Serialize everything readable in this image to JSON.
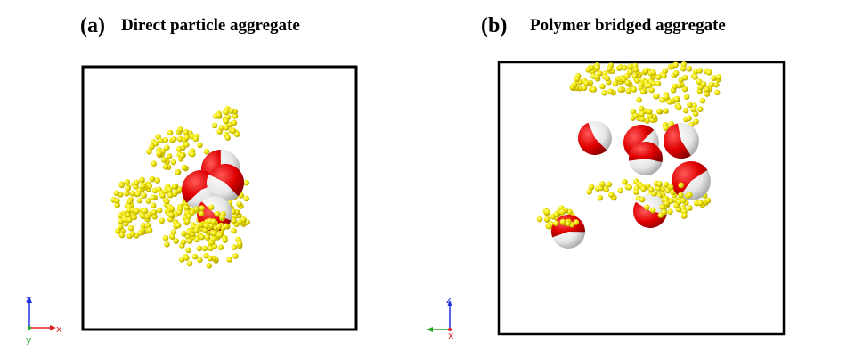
{
  "panels": [
    {
      "label": "(a)",
      "title": "Direct particle aggregate",
      "axes": {
        "z": "z",
        "x": "x",
        "y": "y"
      }
    },
    {
      "label": "(b)",
      "title": "Polymer bridged aggregate",
      "axes": {
        "z": "z",
        "x": "x"
      }
    }
  ]
}
